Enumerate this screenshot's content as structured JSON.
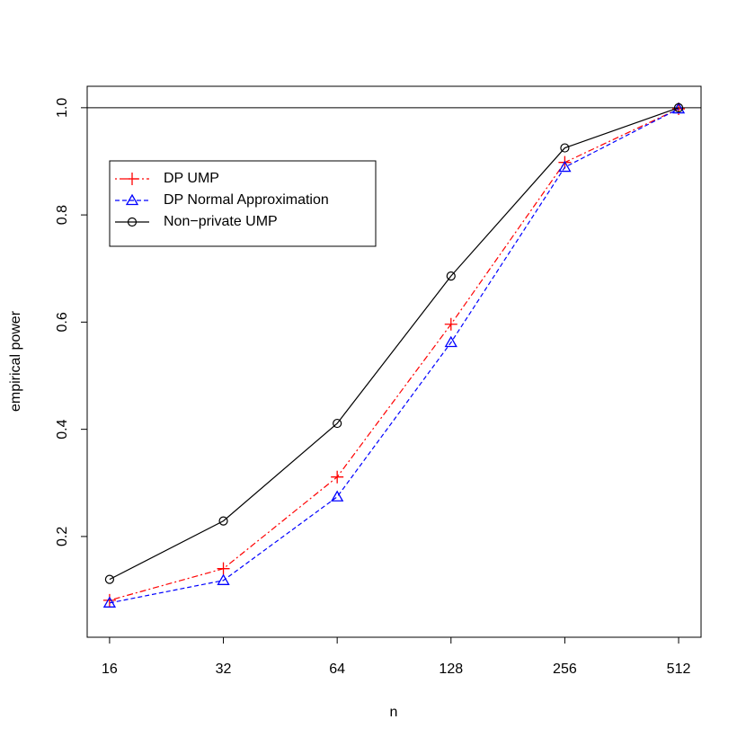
{
  "chart_data": {
    "type": "line",
    "x_label": "n",
    "y_label": "empirical power",
    "x": [
      16,
      32,
      64,
      128,
      256,
      512
    ],
    "x_scale": "log",
    "xlim": [
      13.96,
      587
    ],
    "xticks": [
      16,
      32,
      64,
      128,
      256,
      512
    ],
    "ylim": [
      0.012,
      1.04
    ],
    "yticks": [
      0.2,
      0.4,
      0.6,
      0.8,
      {
        "value": 1,
        "label": "1.0"
      }
    ],
    "reference_line": 1,
    "legend": "topleft",
    "series": [
      {
        "name": "DP UMP",
        "color": "#ff0000",
        "marker": "plus",
        "dash": "dotdash",
        "values": [
          0.081,
          0.14,
          0.311,
          0.596,
          0.898,
          0.998
        ]
      },
      {
        "name": "DP Normal Approximation",
        "color": "#0000ff",
        "marker": "triangle",
        "dash": "dashed",
        "values": [
          0.076,
          0.118,
          0.274,
          0.562,
          0.889,
          0.998
        ]
      },
      {
        "name": "Non−private UMP",
        "color": "#000000",
        "marker": "circle",
        "dash": "solid",
        "values": [
          0.12,
          0.229,
          0.411,
          0.686,
          0.925,
          1.0
        ]
      }
    ]
  }
}
